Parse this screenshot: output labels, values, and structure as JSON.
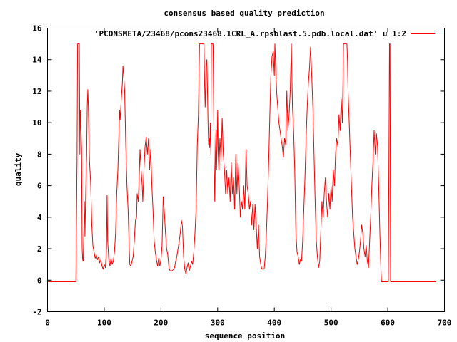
{
  "chart_data": {
    "type": "line",
    "title": "consensus based quality prediction",
    "xlabel": "sequence position",
    "ylabel": "quality",
    "xlim": [
      0,
      700
    ],
    "ylim": [
      -2,
      16
    ],
    "xticks": [
      "0",
      "100",
      "200",
      "300",
      "400",
      "500",
      "600",
      "700"
    ],
    "yticks": [
      "-2",
      "0",
      "2",
      "4",
      "6",
      "8",
      "10",
      "12",
      "14",
      "16"
    ],
    "grid": false,
    "legend_position": "top-right",
    "series": [
      {
        "name": "'PCONSMETA/23468/pcons23468.1CRL_A.rpsblast.5.pdb.local.dat' u 1:2",
        "color": "#ff0000",
        "points": [
          [
            1,
            -0.1
          ],
          [
            50,
            -0.1
          ],
          [
            52,
            7.5
          ],
          [
            53,
            15
          ],
          [
            56,
            15
          ],
          [
            57,
            8
          ],
          [
            58,
            10.8
          ],
          [
            59,
            9.5
          ],
          [
            60,
            8.3
          ],
          [
            61,
            2
          ],
          [
            62,
            1.3
          ],
          [
            63,
            1.2
          ],
          [
            64,
            3
          ],
          [
            65,
            5
          ],
          [
            66,
            2.8
          ],
          [
            68,
            6.8
          ],
          [
            69,
            8
          ],
          [
            70,
            11
          ],
          [
            71,
            12.1
          ],
          [
            72,
            11
          ],
          [
            73,
            9
          ],
          [
            74,
            7.5
          ],
          [
            76,
            6.2
          ],
          [
            78,
            3.5
          ],
          [
            80,
            2.2
          ],
          [
            82,
            1.8
          ],
          [
            84,
            1.4
          ],
          [
            86,
            1.6
          ],
          [
            88,
            1.3
          ],
          [
            90,
            1.5
          ],
          [
            92,
            1.1
          ],
          [
            94,
            1.3
          ],
          [
            96,
            0.9
          ],
          [
            98,
            0.7
          ],
          [
            100,
            1.0
          ],
          [
            102,
            0.8
          ],
          [
            104,
            2.0
          ],
          [
            105,
            5.4
          ],
          [
            106,
            2.5
          ],
          [
            108,
            1.3
          ],
          [
            110,
            0.9
          ],
          [
            112,
            1.4
          ],
          [
            114,
            1.0
          ],
          [
            116,
            1.2
          ],
          [
            118,
            1.8
          ],
          [
            120,
            3.0
          ],
          [
            122,
            5.5
          ],
          [
            124,
            7.0
          ],
          [
            126,
            9.5
          ],
          [
            127,
            10.8
          ],
          [
            128,
            10.2
          ],
          [
            130,
            11.5
          ],
          [
            132,
            12.5
          ],
          [
            133,
            13.6
          ],
          [
            134,
            13.2
          ],
          [
            136,
            12.0
          ],
          [
            138,
            8.5
          ],
          [
            140,
            6.0
          ],
          [
            142,
            4.5
          ],
          [
            144,
            2.0
          ],
          [
            145,
            1.0
          ],
          [
            147,
            0.9
          ],
          [
            149,
            1.2
          ],
          [
            151,
            1.5
          ],
          [
            153,
            2.5
          ],
          [
            155,
            3.8
          ],
          [
            157,
            4.0
          ],
          [
            158,
            5.5
          ],
          [
            160,
            5.0
          ],
          [
            162,
            7.0
          ],
          [
            163,
            8.3
          ],
          [
            165,
            7.0
          ],
          [
            167,
            6.0
          ],
          [
            168,
            5.0
          ],
          [
            170,
            7.0
          ],
          [
            172,
            8.5
          ],
          [
            174,
            9.1
          ],
          [
            176,
            8.0
          ],
          [
            178,
            9.0
          ],
          [
            180,
            7.0
          ],
          [
            182,
            8.3
          ],
          [
            184,
            6.0
          ],
          [
            186,
            4.5
          ],
          [
            188,
            2.5
          ],
          [
            190,
            1.8
          ],
          [
            192,
            1.3
          ],
          [
            194,
            0.9
          ],
          [
            196,
            1.4
          ],
          [
            198,
            0.9
          ],
          [
            200,
            1.3
          ],
          [
            202,
            2.2
          ],
          [
            203,
            3.7
          ],
          [
            204,
            5.3
          ],
          [
            206,
            4.3
          ],
          [
            208,
            3.0
          ],
          [
            210,
            2.0
          ],
          [
            212,
            1.6
          ],
          [
            214,
            0.8
          ],
          [
            216,
            0.6
          ],
          [
            220,
            0.6
          ],
          [
            224,
            0.8
          ],
          [
            226,
            1.2
          ],
          [
            228,
            1.5
          ],
          [
            230,
            2.0
          ],
          [
            232,
            2.4
          ],
          [
            234,
            3.0
          ],
          [
            236,
            3.8
          ],
          [
            238,
            3.4
          ],
          [
            240,
            1.5
          ],
          [
            242,
            0.7
          ],
          [
            244,
            0.4
          ],
          [
            246,
            0.8
          ],
          [
            248,
            1.1
          ],
          [
            250,
            0.6
          ],
          [
            252,
            0.9
          ],
          [
            254,
            1.2
          ],
          [
            256,
            1.0
          ],
          [
            258,
            1.8
          ],
          [
            260,
            3.0
          ],
          [
            262,
            4.5
          ],
          [
            264,
            8.5
          ],
          [
            266,
            10.5
          ],
          [
            268,
            15
          ],
          [
            276,
            15
          ],
          [
            277,
            12.5
          ],
          [
            278,
            11.0
          ],
          [
            279,
            12.5
          ],
          [
            280,
            13.8
          ],
          [
            281,
            14.0
          ],
          [
            282,
            12.0
          ],
          [
            283,
            10.0
          ],
          [
            284,
            8.6
          ],
          [
            285,
            9.0
          ],
          [
            286,
            8.4
          ],
          [
            287,
            10.0
          ],
          [
            288,
            8.0
          ],
          [
            289,
            15
          ],
          [
            292,
            15
          ],
          [
            293,
            11.0
          ],
          [
            294,
            7.0
          ],
          [
            295,
            5.0
          ],
          [
            296,
            8.0
          ],
          [
            297,
            9.5
          ],
          [
            298,
            7.0
          ],
          [
            299,
            8.5
          ],
          [
            300,
            10.8
          ],
          [
            301,
            8.0
          ],
          [
            302,
            7.0
          ],
          [
            304,
            9.0
          ],
          [
            306,
            7.5
          ],
          [
            308,
            10.3
          ],
          [
            310,
            8.0
          ],
          [
            312,
            7.0
          ],
          [
            314,
            5.5
          ],
          [
            316,
            7.0
          ],
          [
            318,
            5.5
          ],
          [
            320,
            6.5
          ],
          [
            322,
            5.0
          ],
          [
            324,
            7.5
          ],
          [
            326,
            5.5
          ],
          [
            328,
            6.5
          ],
          [
            330,
            4.5
          ],
          [
            332,
            8.0
          ],
          [
            334,
            5.5
          ],
          [
            336,
            7.5
          ],
          [
            338,
            6.0
          ],
          [
            340,
            4.0
          ],
          [
            342,
            5.0
          ],
          [
            344,
            4.5
          ],
          [
            346,
            6.0
          ],
          [
            348,
            4.5
          ],
          [
            350,
            8.3
          ],
          [
            352,
            6.0
          ],
          [
            354,
            5.5
          ],
          [
            356,
            4.5
          ],
          [
            358,
            5.0
          ],
          [
            360,
            3.5
          ],
          [
            362,
            4.8
          ],
          [
            364,
            3.2
          ],
          [
            366,
            4.8
          ],
          [
            368,
            3.5
          ],
          [
            370,
            2.0
          ],
          [
            372,
            3.5
          ],
          [
            374,
            1.5
          ],
          [
            376,
            1.0
          ],
          [
            378,
            0.7
          ],
          [
            382,
            0.7
          ],
          [
            384,
            1.5
          ],
          [
            386,
            3.0
          ],
          [
            388,
            5.0
          ],
          [
            390,
            7.5
          ],
          [
            392,
            10.5
          ],
          [
            394,
            13.0
          ],
          [
            396,
            14.2
          ],
          [
            398,
            14.5
          ],
          [
            400,
            13.0
          ],
          [
            401,
            15
          ],
          [
            403,
            13.0
          ],
          [
            404,
            12.0
          ],
          [
            406,
            11.0
          ],
          [
            408,
            10.0
          ],
          [
            410,
            9.5
          ],
          [
            412,
            9.0
          ],
          [
            414,
            8.5
          ],
          [
            416,
            7.8
          ],
          [
            418,
            9.0
          ],
          [
            420,
            8.6
          ],
          [
            422,
            12.0
          ],
          [
            424,
            9.5
          ],
          [
            426,
            10.5
          ],
          [
            428,
            12.0
          ],
          [
            430,
            15
          ],
          [
            432,
            11.0
          ],
          [
            434,
            9.5
          ],
          [
            436,
            7.0
          ],
          [
            438,
            3.0
          ],
          [
            440,
            1.8
          ],
          [
            442,
            1.5
          ],
          [
            444,
            1.0
          ],
          [
            446,
            1.3
          ],
          [
            448,
            1.2
          ],
          [
            450,
            2.5
          ],
          [
            452,
            4.5
          ],
          [
            454,
            6.5
          ],
          [
            456,
            9.0
          ],
          [
            458,
            11.0
          ],
          [
            460,
            12.5
          ],
          [
            462,
            13.5
          ],
          [
            464,
            14.8
          ],
          [
            466,
            13.0
          ],
          [
            468,
            11.0
          ],
          [
            470,
            8.0
          ],
          [
            472,
            5.0
          ],
          [
            474,
            2.5
          ],
          [
            476,
            1.5
          ],
          [
            478,
            0.8
          ],
          [
            480,
            1.2
          ],
          [
            482,
            3.0
          ],
          [
            484,
            5.0
          ],
          [
            486,
            4.0
          ],
          [
            488,
            5.5
          ],
          [
            490,
            6.5
          ],
          [
            492,
            5.0
          ],
          [
            494,
            4.0
          ],
          [
            496,
            5.5
          ],
          [
            498,
            4.5
          ],
          [
            500,
            6.0
          ],
          [
            502,
            5.0
          ],
          [
            504,
            7.0
          ],
          [
            506,
            6.0
          ],
          [
            508,
            8.0
          ],
          [
            510,
            9.0
          ],
          [
            512,
            8.5
          ],
          [
            514,
            10.5
          ],
          [
            516,
            9.5
          ],
          [
            518,
            11.5
          ],
          [
            520,
            10.0
          ],
          [
            522,
            15
          ],
          [
            528,
            15
          ],
          [
            529,
            14.0
          ],
          [
            530,
            12.0
          ],
          [
            532,
            10.0
          ],
          [
            534,
            8.0
          ],
          [
            536,
            6.0
          ],
          [
            538,
            4.0
          ],
          [
            540,
            3.0
          ],
          [
            542,
            2.0
          ],
          [
            544,
            1.5
          ],
          [
            546,
            1.0
          ],
          [
            548,
            1.3
          ],
          [
            550,
            1.8
          ],
          [
            552,
            2.5
          ],
          [
            554,
            3.5
          ],
          [
            556,
            3.0
          ],
          [
            558,
            2.0
          ],
          [
            560,
            1.5
          ],
          [
            562,
            2.2
          ],
          [
            564,
            1.2
          ],
          [
            566,
            0.8
          ],
          [
            568,
            2.5
          ],
          [
            570,
            4.0
          ],
          [
            572,
            6.0
          ],
          [
            574,
            7.5
          ],
          [
            576,
            9.5
          ],
          [
            578,
            8.0
          ],
          [
            580,
            9.3
          ],
          [
            582,
            8.5
          ],
          [
            584,
            6.0
          ],
          [
            586,
            3.0
          ],
          [
            588,
            0.7
          ],
          [
            589,
            -0.1
          ],
          [
            601,
            -0.1
          ],
          [
            602,
            7.5
          ],
          [
            603,
            15
          ],
          [
            604,
            15
          ],
          [
            605,
            -0.1
          ],
          [
            685,
            -0.1
          ]
        ]
      }
    ]
  }
}
